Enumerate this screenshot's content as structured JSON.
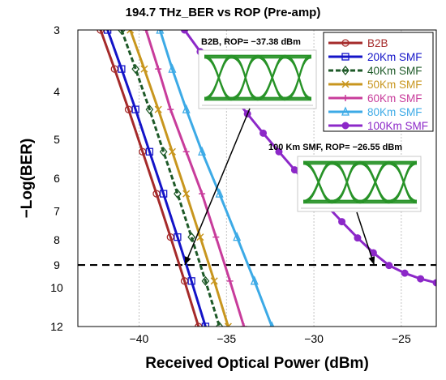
{
  "chart_data": {
    "type": "line",
    "title": "194.7 THz_BER vs ROP (Pre-amp)",
    "xlabel": "Received Optical Power (dBm)",
    "ylabel": "−Log(BER)",
    "xlim": [
      -43.5,
      -23
    ],
    "ylim": [
      3,
      12
    ],
    "y_scale": "log",
    "y_inverted": true,
    "grid": "vertical",
    "legend_position": "top-right",
    "xticks": [
      {
        "value": -40,
        "label": "−40"
      },
      {
        "value": -35,
        "label": "−35"
      },
      {
        "value": -30,
        "label": "−30"
      },
      {
        "value": -25,
        "label": "−25"
      }
    ],
    "yticks": [
      {
        "value": 3,
        "label": "3"
      },
      {
        "value": 4,
        "label": "4"
      },
      {
        "value": 5,
        "label": "5"
      },
      {
        "value": 6,
        "label": "6"
      },
      {
        "value": 7,
        "label": "7"
      },
      {
        "value": 8,
        "label": "8"
      },
      {
        "value": 9,
        "label": "9"
      },
      {
        "value": 10,
        "label": "10"
      },
      {
        "value": 12,
        "label": "12"
      }
    ],
    "threshold": {
      "y": 9,
      "style": "dashed",
      "color": "#000000"
    },
    "series": [
      {
        "name": "B2B",
        "color": "#A52A2A",
        "marker": "circle",
        "dash": "solid",
        "x": [
          -42.2,
          -41.4,
          -40.6,
          -39.8,
          -39.0,
          -38.2,
          -37.4,
          -36.6
        ],
        "y": [
          3.0,
          3.6,
          4.35,
          5.3,
          6.45,
          7.9,
          9.7,
          12.0
        ]
      },
      {
        "name": "20Km SMF",
        "color": "#1414C8",
        "marker": "square",
        "dash": "solid",
        "x": [
          -41.8,
          -41.0,
          -40.2,
          -39.4,
          -38.6,
          -37.8,
          -37.0,
          -36.2
        ],
        "y": [
          3.0,
          3.6,
          4.35,
          5.3,
          6.45,
          7.9,
          9.7,
          12.0
        ]
      },
      {
        "name": "40Km SMF",
        "color": "#1E5A28",
        "marker": "diamond",
        "dash": "dashed",
        "x": [
          -41.0,
          -40.2,
          -39.4,
          -38.6,
          -37.8,
          -37.0,
          -36.2,
          -35.4
        ],
        "y": [
          3.0,
          3.6,
          4.35,
          5.3,
          6.45,
          7.9,
          9.7,
          12.0
        ]
      },
      {
        "name": "50Km SMF",
        "color": "#C8961E",
        "marker": "x",
        "dash": "solid",
        "x": [
          -40.5,
          -39.7,
          -38.9,
          -38.1,
          -37.3,
          -36.5,
          -35.7,
          -34.9
        ],
        "y": [
          3.0,
          3.6,
          4.35,
          5.3,
          6.45,
          7.9,
          9.7,
          12.0
        ]
      },
      {
        "name": "60Km SMF",
        "color": "#C83C9B",
        "marker": "plus",
        "dash": "solid",
        "x": [
          -39.6,
          -38.9,
          -38.2,
          -37.3,
          -36.4,
          -35.6,
          -34.8,
          -34.0
        ],
        "y": [
          3.0,
          3.6,
          4.35,
          5.3,
          6.45,
          7.9,
          9.7,
          12.0
        ]
      },
      {
        "name": "80Km SMF",
        "color": "#3CAAE6",
        "marker": "triangle",
        "dash": "solid",
        "x": [
          -38.8,
          -38.1,
          -37.3,
          -36.4,
          -35.4,
          -34.4,
          -33.4,
          -32.4
        ],
        "y": [
          3.0,
          3.6,
          4.35,
          5.3,
          6.45,
          7.9,
          9.7,
          12.0
        ]
      },
      {
        "name": "100Km SMF",
        "color": "#8C28C8",
        "marker": "filled-circle",
        "dash": "solid",
        "x": [
          -37.4,
          -36.5,
          -35.6,
          -34.7,
          -33.8,
          -32.9,
          -32.0,
          -31.1,
          -30.2,
          -29.3,
          -28.4,
          -27.5,
          -26.6,
          -25.7,
          -24.8,
          -23.9,
          -23.0
        ],
        "y": [
          3.0,
          3.32,
          3.67,
          4.05,
          4.44,
          4.86,
          5.3,
          5.77,
          6.27,
          6.8,
          7.35,
          7.93,
          8.5,
          9.02,
          9.35,
          9.6,
          9.78
        ]
      }
    ],
    "annotations": [
      {
        "text": "B2B, ROP= −37.38 dBm",
        "x": -37.38,
        "y": 9
      },
      {
        "text": "100 Km SMF, ROP= −26.55 dBm",
        "x": -26.55,
        "y": 9
      }
    ]
  }
}
